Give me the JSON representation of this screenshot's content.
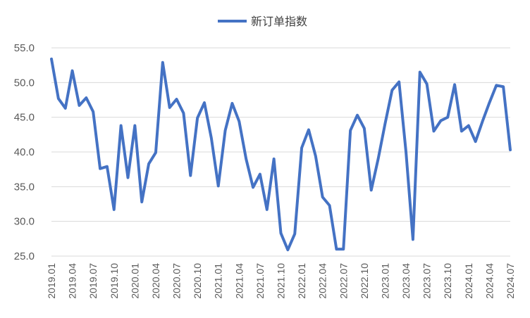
{
  "chart_data": {
    "type": "line",
    "title": "",
    "xlabel": "",
    "ylabel": "",
    "ylim": [
      25,
      55
    ],
    "yticks": [
      "25.0",
      "30.0",
      "35.0",
      "40.0",
      "45.0",
      "50.0",
      "55.0"
    ],
    "grid": true,
    "legend_position": "top",
    "x_tick_labels": [
      "2019.01",
      "2019.04",
      "2019.07",
      "2019.10",
      "2020.01",
      "2020.04",
      "2020.07",
      "2020.10",
      "2021.01",
      "2021.04",
      "2021.07",
      "2021.10",
      "2022.01",
      "2022.04",
      "2022.07",
      "2022.10",
      "2023.01",
      "2023.04",
      "2023.07",
      "2023.10",
      "2024.01",
      "2024.04",
      "2024.07"
    ],
    "x": [
      "2019.01",
      "2019.02",
      "2019.03",
      "2019.04",
      "2019.05",
      "2019.06",
      "2019.07",
      "2019.08",
      "2019.09",
      "2019.10",
      "2019.11",
      "2019.12",
      "2020.01",
      "2020.02",
      "2020.03",
      "2020.04",
      "2020.05",
      "2020.06",
      "2020.07",
      "2020.08",
      "2020.09",
      "2020.10",
      "2020.11",
      "2020.12",
      "2021.01",
      "2021.02",
      "2021.03",
      "2021.04",
      "2021.05",
      "2021.06",
      "2021.07",
      "2021.08",
      "2021.09",
      "2021.10",
      "2021.11",
      "2021.12",
      "2022.01",
      "2022.02",
      "2022.03",
      "2022.04",
      "2022.05",
      "2022.06",
      "2022.07",
      "2022.08",
      "2022.09",
      "2022.10",
      "2022.11",
      "2022.12",
      "2023.01",
      "2023.02",
      "2023.03",
      "2023.04",
      "2023.05",
      "2023.06",
      "2023.07",
      "2023.08",
      "2023.09",
      "2023.10",
      "2023.11",
      "2023.12",
      "2024.01",
      "2024.02",
      "2024.03",
      "2024.04",
      "2024.05",
      "2024.06",
      "2024.07"
    ],
    "series": [
      {
        "name": "新订单指数",
        "color": "#4472c4",
        "values": [
          53.4,
          47.7,
          46.3,
          51.7,
          46.7,
          47.8,
          45.8,
          37.6,
          37.9,
          31.7,
          43.8,
          36.3,
          43.8,
          32.8,
          38.3,
          39.9,
          52.9,
          46.4,
          47.6,
          45.6,
          36.6,
          44.9,
          47.1,
          42.0,
          35.1,
          43.1,
          47.0,
          44.4,
          39.0,
          34.9,
          36.8,
          31.7,
          39.0,
          28.3,
          25.9,
          28.2,
          40.6,
          43.2,
          39.4,
          33.5,
          32.3,
          26.0,
          26.0,
          43.1,
          45.3,
          43.4,
          34.5,
          39.0,
          44.1,
          48.9,
          50.1,
          40.0,
          27.4,
          51.5,
          49.8,
          43.0,
          44.5,
          45.0,
          49.7,
          43.0,
          43.8,
          41.5,
          44.4,
          47.1,
          49.6,
          49.4,
          40.3
        ]
      }
    ]
  }
}
